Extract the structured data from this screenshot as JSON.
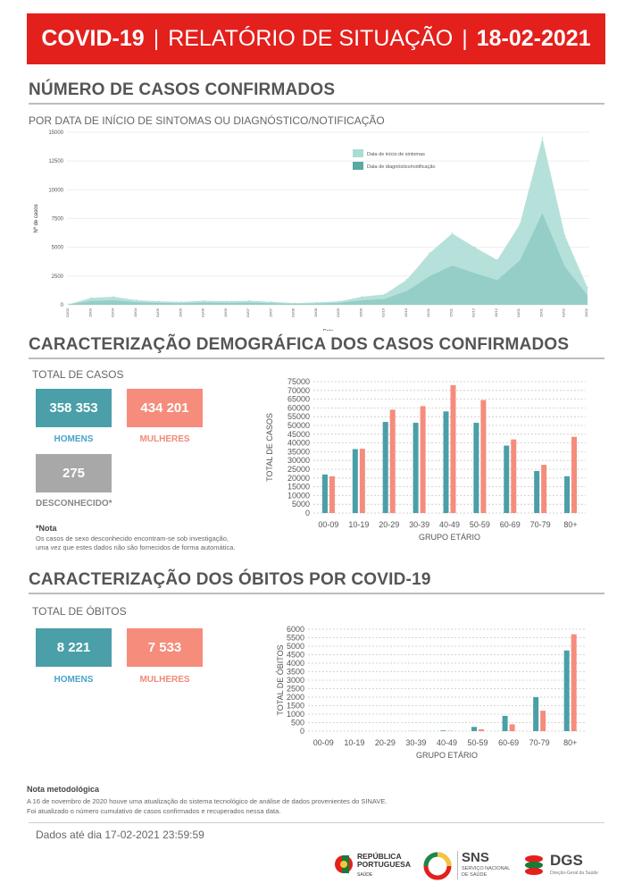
{
  "header": {
    "part1": "COVID-19",
    "separator": "|",
    "part2": "RELATÓRIO DE SITUAÇÃO",
    "date": "18-02-2021"
  },
  "confirmed": {
    "title": "NÚMERO DE CASOS CONFIRMADOS",
    "subtitle": "POR DATA DE INÍCIO DE SINTOMAS OU DIAGNÓSTICO/NOTIFICAÇÃO"
  },
  "demographics": {
    "title": "CARACTERIZAÇÃO DEMOGRÁFICA DOS CASOS CONFIRMADOS",
    "total_label": "TOTAL DE CASOS",
    "men_value": "358 353",
    "men_label": "HOMENS",
    "women_value": "434 201",
    "women_label": "MULHERES",
    "unknown_value": "275",
    "unknown_label": "DESCONHECIDO*",
    "note_title": "*Nota",
    "note_line1": "Os casos de sexo desconhecido encontram-se sob investigação,",
    "note_line2": "uma vez que estes dados não são fornecidos de forma automática."
  },
  "deaths": {
    "title": "CARACTERIZAÇÃO DOS ÓBITOS POR COVID-19",
    "total_label": "TOTAL DE ÓBITOS",
    "men_value": "8 221",
    "men_label": "HOMENS",
    "women_value": "7 533",
    "women_label": "MULHERES"
  },
  "methodology": {
    "title": "Nota metodológica",
    "line1": "A 16 de novembro de 2020 houve uma atualização do sistema tecnológico de análise de dados provenientes do SINAVE.",
    "line2": "Foi atualizado o número cumulativo de casos confirmados e recuperados nessa data."
  },
  "footer": {
    "data_until": "Dados até dia 17-02-2021 23:59:59",
    "logo1_line1": "REPÚBLICA",
    "logo1_line2": "PORTUGUESA",
    "logo1_line3": "SAÚDE",
    "logo2_main": "SNS",
    "logo2_sub1": "SERVIÇO NACIONAL",
    "logo2_sub2": "DE SAÚDE",
    "logo3_main": "DGS",
    "logo3_sub": "Direção-Geral da Saúde"
  },
  "colors": {
    "banner": "#e3201c",
    "men": "#4a9fa8",
    "women": "#f58c7c",
    "unknown": "#a8a8a8",
    "epi_symptoms": "#a9dcd3",
    "epi_notification": "#5aa9a3"
  },
  "chart_data": [
    {
      "type": "area",
      "xlabel": "Data",
      "ylabel": "Nº de casos",
      "ylim": [
        0,
        15000
      ],
      "yticks": [
        0,
        2500,
        5000,
        7500,
        10000,
        12500,
        15000
      ],
      "legend_position": "top-right",
      "series": [
        {
          "name": "Data de início de sintomas",
          "color": "#a9dcd3"
        },
        {
          "name": "Data de diagnóstico/notificação",
          "color": "#5aa9a3"
        }
      ],
      "x": [
        "01/03",
        "15/03",
        "01/04",
        "15/04",
        "01/05",
        "15/05",
        "01/06",
        "15/06",
        "01/07",
        "15/07",
        "01/08",
        "15/08",
        "01/09",
        "15/09",
        "01/10",
        "15/10",
        "01/11",
        "15/11",
        "01/12",
        "15/12",
        "01/01",
        "15/01",
        "01/02",
        "15/02"
      ],
      "values": [
        50,
        600,
        700,
        400,
        300,
        250,
        350,
        300,
        350,
        250,
        150,
        200,
        300,
        700,
        900,
        2200,
        4500,
        6200,
        5000,
        3900,
        7000,
        14500,
        6000,
        1500
      ]
    },
    {
      "type": "bar",
      "xlabel": "GRUPO ETÁRIO",
      "ylabel": "TOTAL DE CASOS",
      "ylim": [
        0,
        75000
      ],
      "yticks": [
        0,
        5000,
        10000,
        15000,
        20000,
        25000,
        30000,
        35000,
        40000,
        45000,
        50000,
        55000,
        60000,
        65000,
        70000,
        75000
      ],
      "categories": [
        "00-09",
        "10-19",
        "20-29",
        "30-39",
        "40-49",
        "50-59",
        "60-69",
        "70-79",
        "80+"
      ],
      "series": [
        {
          "name": "HOMENS",
          "color": "#4a9fa8",
          "values": [
            22000,
            36500,
            52000,
            51500,
            58000,
            51500,
            38500,
            24000,
            21000
          ]
        },
        {
          "name": "MULHERES",
          "color": "#f58c7c",
          "values": [
            21000,
            36700,
            59000,
            61000,
            73000,
            64500,
            42000,
            27500,
            43500
          ]
        }
      ]
    },
    {
      "type": "bar",
      "xlabel": "GRUPO ETÁRIO",
      "ylabel": "TOTAL DE ÓBITOS",
      "ylim": [
        0,
        6000
      ],
      "yticks": [
        0,
        500,
        1000,
        1500,
        2000,
        2500,
        3000,
        3500,
        4000,
        4500,
        5000,
        5500,
        6000
      ],
      "categories": [
        "00-09",
        "10-19",
        "20-29",
        "30-39",
        "40-49",
        "50-59",
        "60-69",
        "70-79",
        "80+"
      ],
      "series": [
        {
          "name": "HOMENS",
          "color": "#4a9fa8",
          "values": [
            0,
            0,
            2,
            8,
            40,
            250,
            900,
            2000,
            4750
          ]
        },
        {
          "name": "MULHERES",
          "color": "#f58c7c",
          "values": [
            0,
            0,
            1,
            4,
            20,
            110,
            400,
            1200,
            5700
          ]
        }
      ]
    }
  ]
}
